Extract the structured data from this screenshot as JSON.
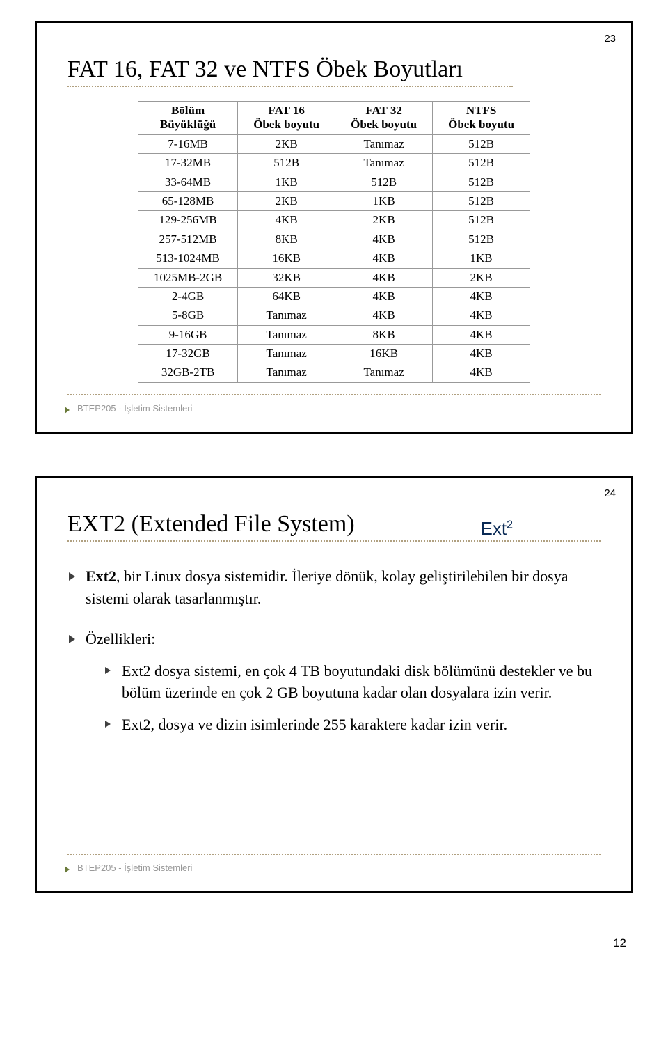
{
  "outer_page_number": "12",
  "slide1": {
    "number": "23",
    "title": "FAT 16, FAT 32 ve NTFS Öbek Boyutları",
    "footer": "BTEP205 - İşletim Sistemleri",
    "table": {
      "headers": {
        "c0_l1": "Bölüm",
        "c0_l2": "Büyüklüğü",
        "c1_l1": "FAT 16",
        "c1_l2": "Öbek boyutu",
        "c2_l1": "FAT 32",
        "c2_l2": "Öbek boyutu",
        "c3_l1": "NTFS",
        "c3_l2": "Öbek boyutu"
      },
      "rows": [
        [
          "7-16MB",
          "2KB",
          "Tanımaz",
          "512B"
        ],
        [
          "17-32MB",
          "512B",
          "Tanımaz",
          "512B"
        ],
        [
          "33-64MB",
          "1KB",
          "512B",
          "512B"
        ],
        [
          "65-128MB",
          "2KB",
          "1KB",
          "512B"
        ],
        [
          "129-256MB",
          "4KB",
          "2KB",
          "512B"
        ],
        [
          "257-512MB",
          "8KB",
          "4KB",
          "512B"
        ],
        [
          "513-1024MB",
          "16KB",
          "4KB",
          "1KB"
        ],
        [
          "1025MB-2GB",
          "32KB",
          "4KB",
          "2KB"
        ],
        [
          "2-4GB",
          "64KB",
          "4KB",
          "4KB"
        ],
        [
          "5-8GB",
          "Tanımaz",
          "4KB",
          "4KB"
        ],
        [
          "9-16GB",
          "Tanımaz",
          "8KB",
          "4KB"
        ],
        [
          "17-32GB",
          "Tanımaz",
          "16KB",
          "4KB"
        ],
        [
          "32GB-2TB",
          "Tanımaz",
          "Tanımaz",
          "4KB"
        ]
      ]
    }
  },
  "slide2": {
    "number": "24",
    "title": "EXT2 (Extended File System)",
    "logo_text": "Ext",
    "logo_sup": "2",
    "footer": "BTEP205 - İşletim Sistemleri",
    "para1_strong": "Ext2",
    "para1_rest": ", bir Linux dosya sistemidir. İleriye dönük, kolay geliştirilebilen bir dosya sistemi olarak tasarlanmıştır.",
    "features_label": "Özellikleri:",
    "feat1": "Ext2 dosya sistemi, en çok 4 TB boyutundaki disk bölümünü destekler ve bu bölüm üzerinde en çok 2 GB boyutuna kadar olan dosyalara izin verir.",
    "feat2": "Ext2, dosya ve dizin isimlerinde 255 karaktere kadar izin verir."
  }
}
